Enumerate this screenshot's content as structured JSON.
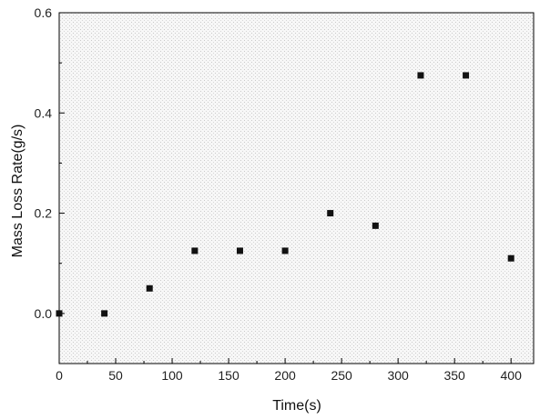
{
  "chart_data": {
    "type": "scatter",
    "title": "",
    "xlabel": "Time(s)",
    "ylabel": "Mass Loss Rate(g/s)",
    "xlim": [
      0,
      420
    ],
    "ylim": [
      -0.1,
      0.6
    ],
    "x_ticks": [
      0,
      50,
      100,
      150,
      200,
      250,
      300,
      350,
      400
    ],
    "y_ticks": [
      0.0,
      0.2,
      0.4,
      0.6
    ],
    "x_tick_labels": [
      "0",
      "50",
      "100",
      "150",
      "200",
      "250",
      "300",
      "350",
      "400"
    ],
    "y_tick_labels": [
      "0.0",
      "0.2",
      "0.4",
      "0.6"
    ],
    "grid": false,
    "legend": "none",
    "background": "stippled light gray",
    "marker": "square",
    "marker_color": "#111111",
    "series": [
      {
        "x": [
          0,
          40,
          80,
          120,
          160,
          200,
          240,
          280,
          320,
          360,
          400
        ],
        "y": [
          0.0,
          0.0,
          0.05,
          0.125,
          0.125,
          0.125,
          0.2,
          0.175,
          0.475,
          0.475,
          0.11
        ]
      }
    ]
  }
}
